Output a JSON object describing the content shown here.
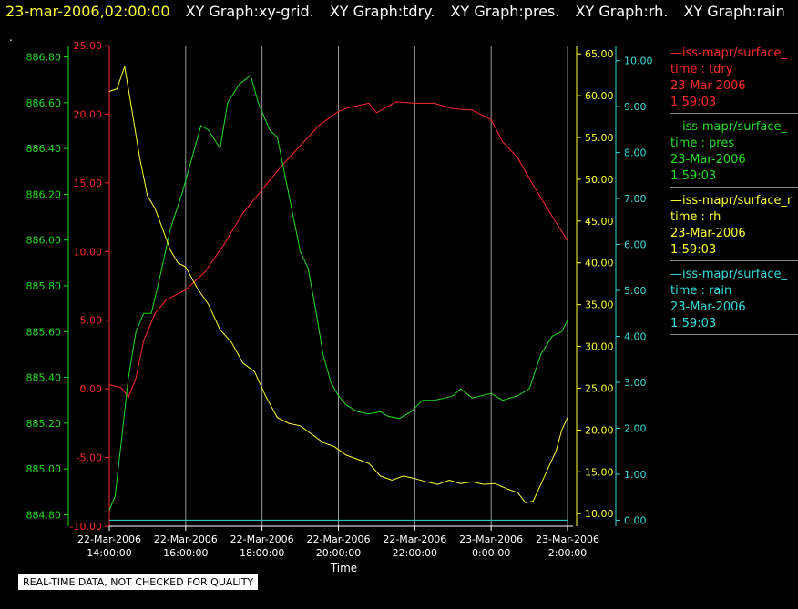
{
  "header": {
    "date": "23-mar-2006,02:00:00",
    "graph_titles": [
      "XY Graph:xy-grid.",
      "XY Graph:tdry.",
      "XY Graph:pres.",
      "XY Graph:rh.",
      "XY Graph:rain"
    ]
  },
  "dot": ".",
  "footer": {
    "label": "REAL-TIME DATA, NOT CHECKED FOR QUALITY"
  },
  "colors": {
    "tdry": "#ff2a2a",
    "pres": "#22dd22",
    "rh": "#ffff33",
    "rain": "#33dddd",
    "grid": "#999999",
    "xaxis": "#ffffff"
  },
  "legend": [
    {
      "line": "—iss-mapr/surface_",
      "var": "time : tdry",
      "date": "23-Mar-2006",
      "time": "1:59:03",
      "color": "#ff2a2a"
    },
    {
      "line": "—iss-mapr/surface_",
      "var": "time : pres",
      "date": "23-Mar-2006",
      "time": "1:59:03",
      "color": "#22dd22"
    },
    {
      "line": "—iss-mapr/surface_r",
      "var": "time : rh",
      "date": "23-Mar-2006",
      "time": "1:59:03",
      "color": "#ffff33"
    },
    {
      "line": "—iss-mapr/surface_",
      "var": "time : rain",
      "date": "23-Mar-2006",
      "time": "1:59:03",
      "color": "#33dddd"
    }
  ],
  "chart_data": {
    "type": "line",
    "xlabel": "Time",
    "x_ticks": [
      [
        "22-Mar-2006",
        "14:00:00"
      ],
      [
        "22-Mar-2006",
        "16:00:00"
      ],
      [
        "22-Mar-2006",
        "18:00:00"
      ],
      [
        "22-Mar-2006",
        "20:00:00"
      ],
      [
        "22-Mar-2006",
        "22:00:00"
      ],
      [
        "23-Mar-2006",
        "0:00:00"
      ],
      [
        "23-Mar-2006",
        "2:00:00"
      ]
    ],
    "xlim_hours": [
      0,
      12
    ],
    "grid": true,
    "axes": {
      "tdry": {
        "ylim": [
          -10,
          25
        ],
        "ticks": [
          "25.00",
          "20.00",
          "15.00",
          "10.00",
          "5.00",
          "0.00",
          "-5.00",
          "-10.00"
        ]
      },
      "pres": {
        "ylim": [
          884.75,
          886.85
        ],
        "ticks": [
          "886.80",
          "886.60",
          "886.40",
          "886.20",
          "886.00",
          "885.80",
          "885.60",
          "885.40",
          "885.20",
          "885.00",
          "884.80"
        ]
      },
      "rh": {
        "ylim": [
          8.5,
          66.0
        ],
        "ticks": [
          "65.00",
          "60.00",
          "55.00",
          "50.00",
          "45.00",
          "40.00",
          "35.00",
          "30.00",
          "25.00",
          "20.00",
          "15.00",
          "10.00"
        ]
      },
      "rain": {
        "ylim": [
          -0.13,
          10.33
        ],
        "ticks": [
          "10.00",
          "9.00",
          "8.00",
          "7.00",
          "6.00",
          "5.00",
          "4.00",
          "3.00",
          "2.00",
          "1.00",
          "0.00"
        ]
      }
    },
    "series": [
      {
        "name": "tdry",
        "axis": "tdry",
        "x": [
          0,
          0.3,
          0.5,
          0.7,
          0.9,
          1.2,
          1.5,
          2.0,
          2.5,
          3.0,
          3.5,
          4.0,
          4.5,
          5.0,
          5.5,
          6.0,
          6.3,
          6.8,
          7.0,
          7.5,
          8.0,
          8.5,
          9.0,
          9.5,
          10.0,
          10.3,
          10.7,
          11.0,
          11.5,
          12.0
        ],
        "y": [
          0.3,
          0.1,
          -0.6,
          0.8,
          3.5,
          5.5,
          6.5,
          7.2,
          8.5,
          10.5,
          12.8,
          14.5,
          16.2,
          17.7,
          19.2,
          20.2,
          20.5,
          20.8,
          20.1,
          20.9,
          20.8,
          20.8,
          20.4,
          20.3,
          19.6,
          18.0,
          16.8,
          15.3,
          13.0,
          10.8
        ]
      },
      {
        "name": "pres",
        "axis": "pres",
        "x": [
          0,
          0.15,
          0.3,
          0.5,
          0.7,
          0.9,
          1.1,
          1.3,
          1.6,
          1.9,
          2.2,
          2.4,
          2.6,
          2.9,
          3.1,
          3.4,
          3.7,
          3.9,
          4.2,
          4.4,
          4.7,
          5.0,
          5.2,
          5.4,
          5.6,
          5.8,
          6.0,
          6.2,
          6.5,
          6.8,
          7.1,
          7.3,
          7.6,
          7.9,
          8.2,
          8.5,
          8.8,
          9.0,
          9.2,
          9.5,
          10.0,
          10.3,
          10.7,
          11.0,
          11.3,
          11.6,
          11.85,
          12.0
        ],
        "y": [
          884.82,
          884.88,
          885.1,
          885.4,
          885.6,
          885.68,
          885.68,
          885.82,
          886.05,
          886.2,
          886.38,
          886.5,
          886.48,
          886.4,
          886.6,
          886.68,
          886.72,
          886.6,
          886.48,
          886.45,
          886.2,
          885.95,
          885.88,
          885.7,
          885.5,
          885.38,
          885.32,
          885.28,
          885.25,
          885.24,
          885.25,
          885.23,
          885.22,
          885.25,
          885.3,
          885.3,
          885.31,
          885.32,
          885.35,
          885.31,
          885.33,
          885.3,
          885.32,
          885.35,
          885.5,
          885.58,
          885.6,
          885.65
        ]
      },
      {
        "name": "rh",
        "axis": "rh",
        "x": [
          0,
          0.2,
          0.4,
          0.6,
          0.8,
          1.0,
          1.2,
          1.4,
          1.6,
          1.8,
          2.0,
          2.3,
          2.6,
          2.9,
          3.2,
          3.5,
          3.8,
          4.1,
          4.4,
          4.7,
          5.0,
          5.3,
          5.6,
          5.9,
          6.2,
          6.5,
          6.8,
          7.1,
          7.4,
          7.7,
          8.0,
          8.3,
          8.6,
          8.9,
          9.2,
          9.5,
          9.8,
          10.1,
          10.4,
          10.7,
          10.9,
          11.1,
          11.3,
          11.5,
          11.7,
          11.85,
          12.0
        ],
        "y": [
          60.5,
          60.8,
          63.5,
          58.0,
          52.5,
          48.0,
          46.5,
          44.0,
          41.5,
          40.0,
          39.5,
          37.0,
          35.0,
          32.0,
          30.5,
          28.0,
          27.0,
          24.0,
          21.5,
          20.8,
          20.5,
          19.5,
          18.5,
          18.0,
          17.0,
          16.5,
          16.0,
          14.5,
          14.0,
          14.5,
          14.2,
          13.8,
          13.5,
          14.0,
          13.6,
          13.8,
          13.5,
          13.6,
          13.0,
          12.5,
          11.3,
          11.5,
          13.5,
          15.5,
          17.5,
          20.0,
          21.5
        ]
      },
      {
        "name": "rain",
        "axis": "rain",
        "x": [
          0,
          12
        ],
        "y": [
          0,
          0
        ]
      }
    ]
  }
}
